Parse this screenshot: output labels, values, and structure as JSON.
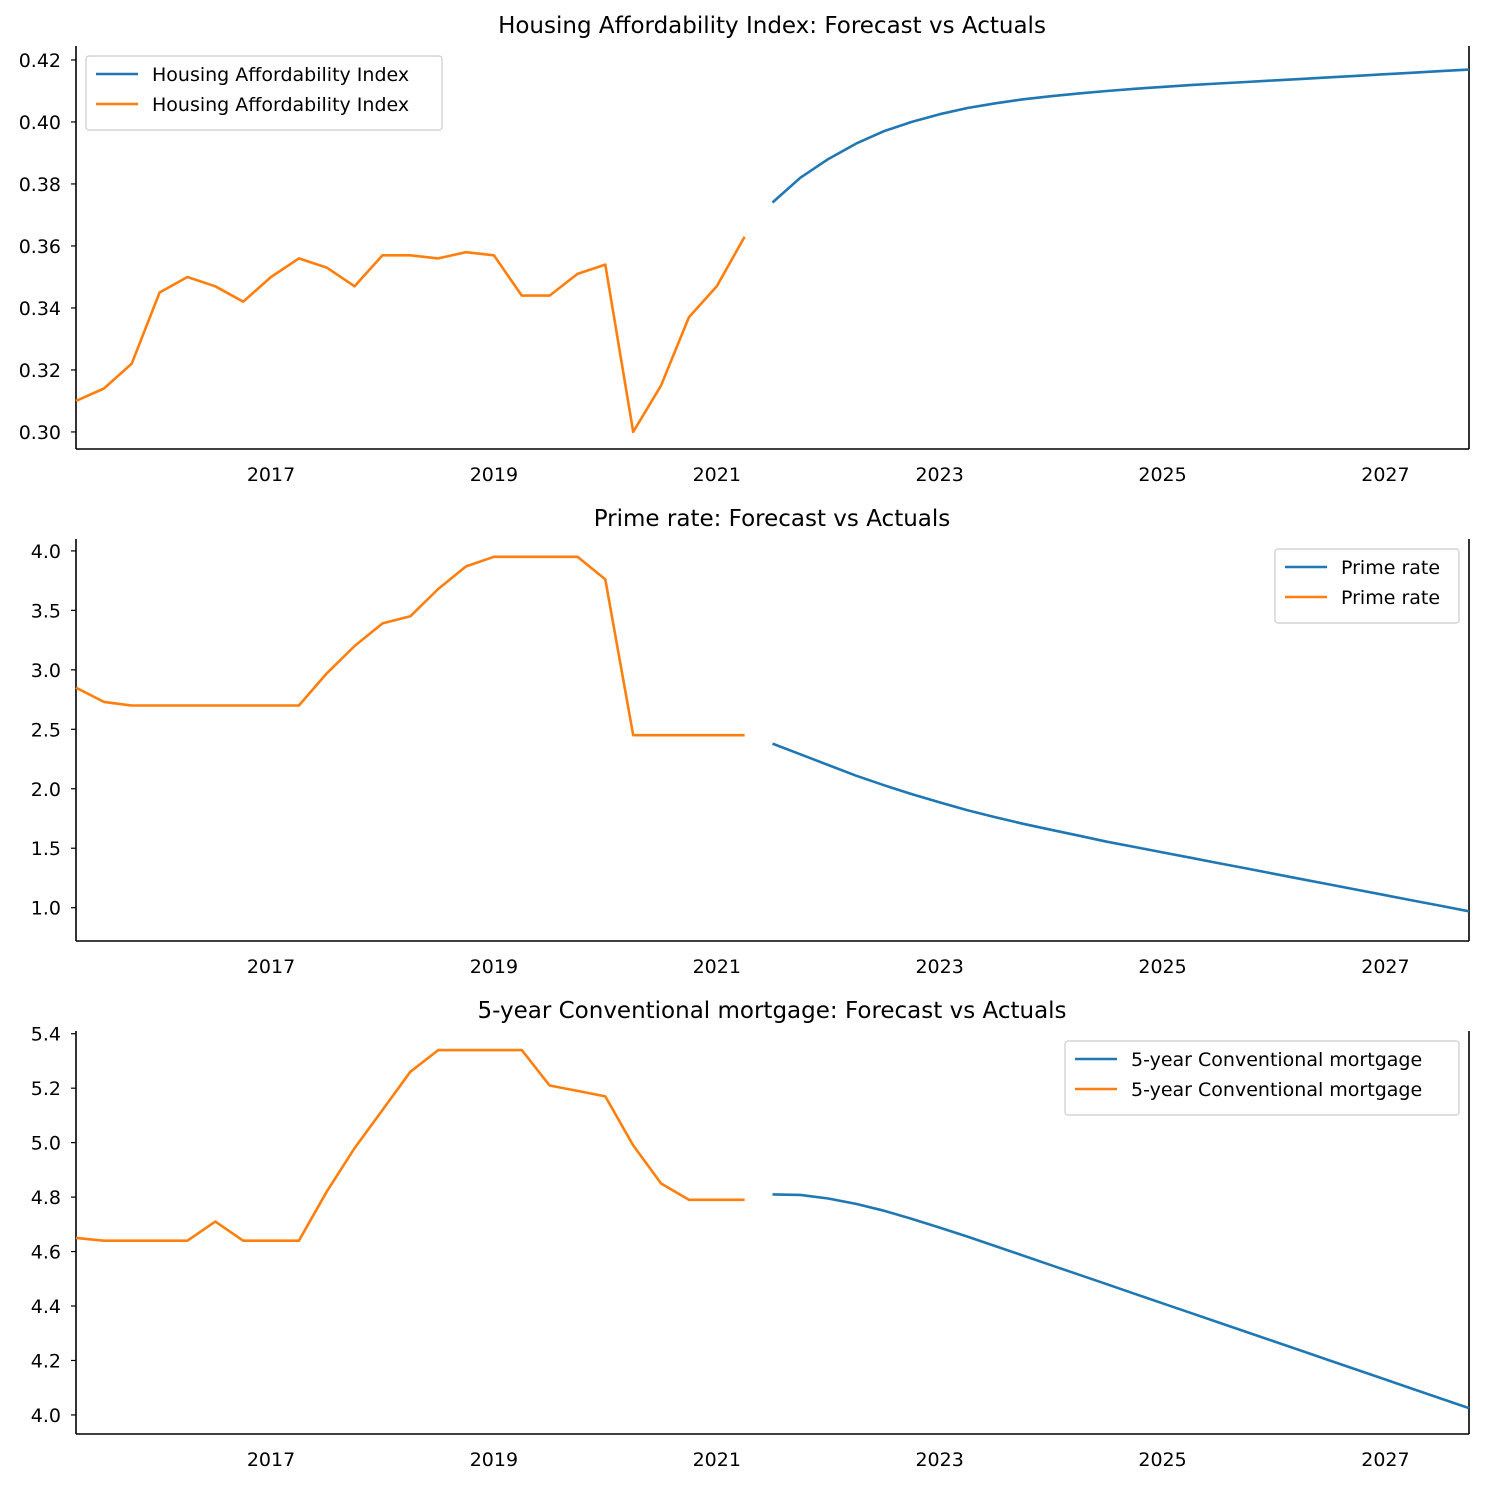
{
  "colors": {
    "forecast": "#1f77b4",
    "actual": "#ff7f0e"
  },
  "chart_data": [
    {
      "type": "line",
      "title": "Housing Affordability Index: Forecast vs Actuals",
      "xlabel": "",
      "ylabel": "",
      "xlim": [
        2015.25,
        2027.75
      ],
      "ylim": [
        0.2945,
        0.4245
      ],
      "xticks": [
        2017,
        2019,
        2021,
        2023,
        2025,
        2027
      ],
      "xtick_labels": [
        "2017",
        "2019",
        "2021",
        "2023",
        "2025",
        "2027"
      ],
      "yticks": [
        0.3,
        0.32,
        0.34,
        0.36,
        0.38,
        0.4,
        0.42
      ],
      "ytick_labels": [
        "0.30",
        "0.32",
        "0.34",
        "0.36",
        "0.38",
        "0.40",
        "0.42"
      ],
      "grid": false,
      "legend_position": "upper-left",
      "series": [
        {
          "name": "Housing Affordability Index",
          "role": "forecast",
          "x": [
            2021.5,
            2021.75,
            2022.0,
            2022.25,
            2022.5,
            2022.75,
            2023.0,
            2023.25,
            2023.5,
            2023.75,
            2024.0,
            2024.25,
            2024.5,
            2024.75,
            2025.0,
            2025.25,
            2025.5,
            2025.75,
            2026.0,
            2026.25,
            2026.5,
            2026.75,
            2027.0,
            2027.25,
            2027.5,
            2027.75
          ],
          "y": [
            0.374,
            0.382,
            0.388,
            0.393,
            0.397,
            0.4,
            0.4025,
            0.4045,
            0.406,
            0.4073,
            0.4083,
            0.4092,
            0.41,
            0.4107,
            0.4113,
            0.4119,
            0.4124,
            0.4129,
            0.4134,
            0.4139,
            0.4144,
            0.4149,
            0.4154,
            0.4159,
            0.4164,
            0.4169
          ]
        },
        {
          "name": "Housing Affordability Index",
          "role": "actual",
          "x": [
            2015.25,
            2015.5,
            2015.75,
            2016.0,
            2016.25,
            2016.5,
            2016.75,
            2017.0,
            2017.25,
            2017.5,
            2017.75,
            2018.0,
            2018.25,
            2018.5,
            2018.75,
            2019.0,
            2019.25,
            2019.5,
            2019.75,
            2020.0,
            2020.25,
            2020.5,
            2020.75,
            2021.0,
            2021.25
          ],
          "y": [
            0.31,
            0.314,
            0.322,
            0.345,
            0.35,
            0.347,
            0.342,
            0.35,
            0.356,
            0.353,
            0.347,
            0.357,
            0.357,
            0.356,
            0.358,
            0.357,
            0.344,
            0.344,
            0.351,
            0.354,
            0.3,
            0.315,
            0.337,
            0.347,
            0.363
          ]
        }
      ]
    },
    {
      "type": "line",
      "title": "Prime rate: Forecast vs Actuals",
      "xlabel": "",
      "ylabel": "",
      "xlim": [
        2015.25,
        2027.75
      ],
      "ylim": [
        0.72,
        4.1
      ],
      "xticks": [
        2017,
        2019,
        2021,
        2023,
        2025,
        2027
      ],
      "xtick_labels": [
        "2017",
        "2019",
        "2021",
        "2023",
        "2025",
        "2027"
      ],
      "yticks": [
        1.0,
        1.5,
        2.0,
        2.5,
        3.0,
        3.5,
        4.0
      ],
      "ytick_labels": [
        "1.0",
        "1.5",
        "2.0",
        "2.5",
        "3.0",
        "3.5",
        "4.0"
      ],
      "grid": false,
      "legend_position": "upper-right",
      "series": [
        {
          "name": "Prime rate",
          "role": "forecast",
          "x": [
            2021.5,
            2021.75,
            2022.0,
            2022.25,
            2022.5,
            2022.75,
            2023.0,
            2023.25,
            2023.5,
            2023.75,
            2024.0,
            2024.25,
            2024.5,
            2024.75,
            2025.0,
            2025.25,
            2025.5,
            2025.75,
            2026.0,
            2026.25,
            2026.5,
            2026.75,
            2027.0,
            2027.25,
            2027.5,
            2027.75
          ],
          "y": [
            2.38,
            2.29,
            2.2,
            2.11,
            2.03,
            1.955,
            1.885,
            1.82,
            1.76,
            1.705,
            1.655,
            1.605,
            1.555,
            1.51,
            1.465,
            1.42,
            1.375,
            1.33,
            1.285,
            1.24,
            1.195,
            1.15,
            1.105,
            1.06,
            1.015,
            0.97
          ]
        },
        {
          "name": "Prime rate",
          "role": "actual",
          "x": [
            2015.25,
            2015.5,
            2015.75,
            2016.0,
            2016.25,
            2016.5,
            2016.75,
            2017.0,
            2017.25,
            2017.5,
            2017.75,
            2018.0,
            2018.25,
            2018.5,
            2018.75,
            2019.0,
            2019.25,
            2019.5,
            2019.75,
            2020.0,
            2020.25,
            2020.5,
            2020.75,
            2021.0,
            2021.25
          ],
          "y": [
            2.85,
            2.73,
            2.7,
            2.7,
            2.7,
            2.7,
            2.7,
            2.7,
            2.7,
            2.97,
            3.2,
            3.39,
            3.45,
            3.68,
            3.87,
            3.95,
            3.95,
            3.95,
            3.95,
            3.76,
            2.45,
            2.45,
            2.45,
            2.45,
            2.45
          ]
        }
      ]
    },
    {
      "type": "line",
      "title": "5-year Conventional mortgage: Forecast vs Actuals",
      "xlabel": "",
      "ylabel": "",
      "xlim": [
        2015.25,
        2027.75
      ],
      "ylim": [
        3.93,
        5.41
      ],
      "xticks": [
        2017,
        2019,
        2021,
        2023,
        2025,
        2027
      ],
      "xtick_labels": [
        "2017",
        "2019",
        "2021",
        "2023",
        "2025",
        "2027"
      ],
      "yticks": [
        4.0,
        4.2,
        4.4,
        4.6,
        4.8,
        5.0,
        5.2,
        5.4
      ],
      "ytick_labels": [
        "4.0",
        "4.2",
        "4.4",
        "4.6",
        "4.8",
        "5.0",
        "5.2",
        "5.4"
      ],
      "grid": false,
      "legend_position": "upper-right",
      "series": [
        {
          "name": "5-year Conventional mortgage",
          "role": "forecast",
          "x": [
            2021.5,
            2021.75,
            2022.0,
            2022.25,
            2022.5,
            2022.75,
            2023.0,
            2023.25,
            2023.5,
            2023.75,
            2024.0,
            2024.25,
            2024.5,
            2024.75,
            2025.0,
            2025.25,
            2025.5,
            2025.75,
            2026.0,
            2026.25,
            2026.5,
            2026.75,
            2027.0,
            2027.25,
            2027.5,
            2027.75
          ],
          "y": [
            4.81,
            4.808,
            4.795,
            4.775,
            4.75,
            4.72,
            4.688,
            4.655,
            4.62,
            4.585,
            4.55,
            4.515,
            4.48,
            4.445,
            4.41,
            4.375,
            4.34,
            4.305,
            4.27,
            4.235,
            4.2,
            4.165,
            4.13,
            4.095,
            4.06,
            4.025
          ]
        },
        {
          "name": "5-year Conventional mortgage",
          "role": "actual",
          "x": [
            2015.25,
            2015.5,
            2015.75,
            2016.0,
            2016.25,
            2016.5,
            2016.75,
            2017.0,
            2017.25,
            2017.5,
            2017.75,
            2018.0,
            2018.25,
            2018.5,
            2018.75,
            2019.0,
            2019.25,
            2019.5,
            2019.75,
            2020.0,
            2020.25,
            2020.5,
            2020.75,
            2021.0,
            2021.25
          ],
          "y": [
            4.65,
            4.64,
            4.64,
            4.64,
            4.64,
            4.71,
            4.64,
            4.64,
            4.64,
            4.82,
            4.98,
            5.12,
            5.26,
            5.34,
            5.34,
            5.34,
            5.34,
            5.21,
            5.19,
            5.17,
            4.99,
            4.85,
            4.79,
            4.79,
            4.79
          ]
        }
      ]
    }
  ]
}
